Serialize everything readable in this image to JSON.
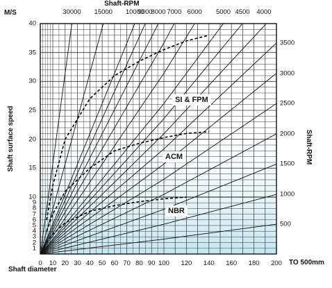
{
  "chart_data": {
    "type": "line",
    "title": "Shaft-RPM",
    "xlabel": "Shaft diameter",
    "ylabel": "Shaft surface speed",
    "y_unit": "M/S",
    "right_axis_label": "Shaft-RPM",
    "x_extra_label": "TO 500mm",
    "xlim": [
      0,
      200
    ],
    "ylim_upper": [
      10,
      40
    ],
    "ylim_lower": [
      0,
      10
    ],
    "x_ticks": [
      "0",
      "10",
      "20",
      "30",
      "40",
      "50",
      "60",
      "70",
      "80",
      "90",
      "100",
      "120",
      "140",
      "160",
      "180",
      "200"
    ],
    "y_ticks_upper": [
      "40",
      "35",
      "30",
      "25",
      "20",
      "15"
    ],
    "y_ticks_lower": [
      "10",
      "9",
      "8",
      "7",
      "6",
      "5",
      "4",
      "3",
      "2",
      "1"
    ],
    "top_rpm_ticks": [
      "30000",
      "15000",
      "10000",
      "9000",
      "8000",
      "7000",
      "6000",
      "5000",
      "4500",
      "4000"
    ],
    "right_rpm_ticks": [
      "3500",
      "3000",
      "2500",
      "2000",
      "1500",
      "1000",
      "500"
    ],
    "rpm_lines": [
      30000,
      15000,
      10000,
      9000,
      8000,
      7000,
      6000,
      5000,
      4500,
      4000,
      3500,
      3000,
      2500,
      2000,
      1500,
      1000,
      500
    ],
    "zones": [
      {
        "label": "SI & FPM",
        "boundary": [
          [
            5,
            6
          ],
          [
            10,
            12
          ],
          [
            20,
            20
          ],
          [
            40,
            27
          ],
          [
            60,
            31
          ],
          [
            80,
            33.5
          ],
          [
            100,
            35.5
          ],
          [
            120,
            37
          ],
          [
            140,
            38
          ]
        ]
      },
      {
        "label": "ACM",
        "boundary": [
          [
            5,
            4
          ],
          [
            10,
            7
          ],
          [
            20,
            11
          ],
          [
            40,
            15
          ],
          [
            60,
            18
          ],
          [
            80,
            19.3
          ],
          [
            100,
            20.3
          ],
          [
            120,
            21
          ],
          [
            140,
            21.3
          ]
        ]
      },
      {
        "label": "NBR",
        "boundary": [
          [
            5,
            2
          ],
          [
            10,
            3.5
          ],
          [
            20,
            5.5
          ],
          [
            40,
            7.5
          ],
          [
            60,
            8.5
          ],
          [
            80,
            9.2
          ],
          [
            100,
            9.7
          ],
          [
            120,
            10
          ]
        ]
      }
    ]
  }
}
